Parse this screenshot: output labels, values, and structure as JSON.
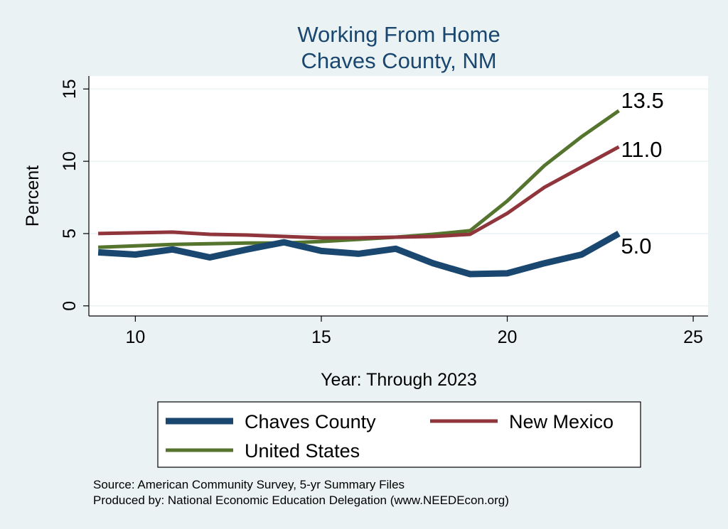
{
  "chart_data": {
    "type": "line",
    "title": [
      "Working From Home",
      "Chaves County, NM"
    ],
    "xlabel": "Year: Through 2023",
    "ylabel": "Percent",
    "xlim": [
      8.75,
      25.4
    ],
    "ylim": [
      -0.7,
      15.9
    ],
    "xticks": [
      10,
      15,
      20,
      25
    ],
    "yticks": [
      0,
      5,
      10,
      15
    ],
    "grid": true,
    "legend_position": "bottom",
    "series": [
      {
        "name": "Chaves County",
        "color": "#1a476f",
        "width": "thick",
        "x": [
          9,
          10,
          11,
          12,
          13,
          14,
          15,
          16,
          17,
          18,
          19,
          20,
          21,
          22,
          23
        ],
        "values": [
          3.7,
          3.55,
          3.9,
          3.35,
          3.9,
          4.4,
          3.8,
          3.6,
          3.95,
          2.95,
          2.2,
          2.25,
          2.95,
          3.55,
          5.0
        ],
        "end_label": "5.0"
      },
      {
        "name": "New Mexico",
        "color": "#90353b",
        "width": "medium",
        "x": [
          9,
          10,
          11,
          12,
          13,
          14,
          15,
          16,
          17,
          18,
          19,
          20,
          21,
          22,
          23
        ],
        "values": [
          5.0,
          5.05,
          5.1,
          4.95,
          4.9,
          4.8,
          4.7,
          4.7,
          4.75,
          4.8,
          4.95,
          6.4,
          8.2,
          9.6,
          11.0
        ],
        "end_label": "11.0"
      },
      {
        "name": "United States",
        "color": "#55752f",
        "width": "medium",
        "x": [
          9,
          10,
          11,
          12,
          13,
          14,
          15,
          16,
          17,
          18,
          19,
          20,
          21,
          22,
          23
        ],
        "values": [
          4.05,
          4.15,
          4.25,
          4.3,
          4.35,
          4.35,
          4.45,
          4.6,
          4.75,
          4.95,
          5.2,
          7.25,
          9.7,
          11.7,
          13.5
        ],
        "end_label": "13.5"
      }
    ]
  },
  "notes": [
    "Source: American Community Survey, 5-yr Summary Files",
    "Produced by: National Economic Education Delegation (www.NEEDEcon.org)"
  ]
}
